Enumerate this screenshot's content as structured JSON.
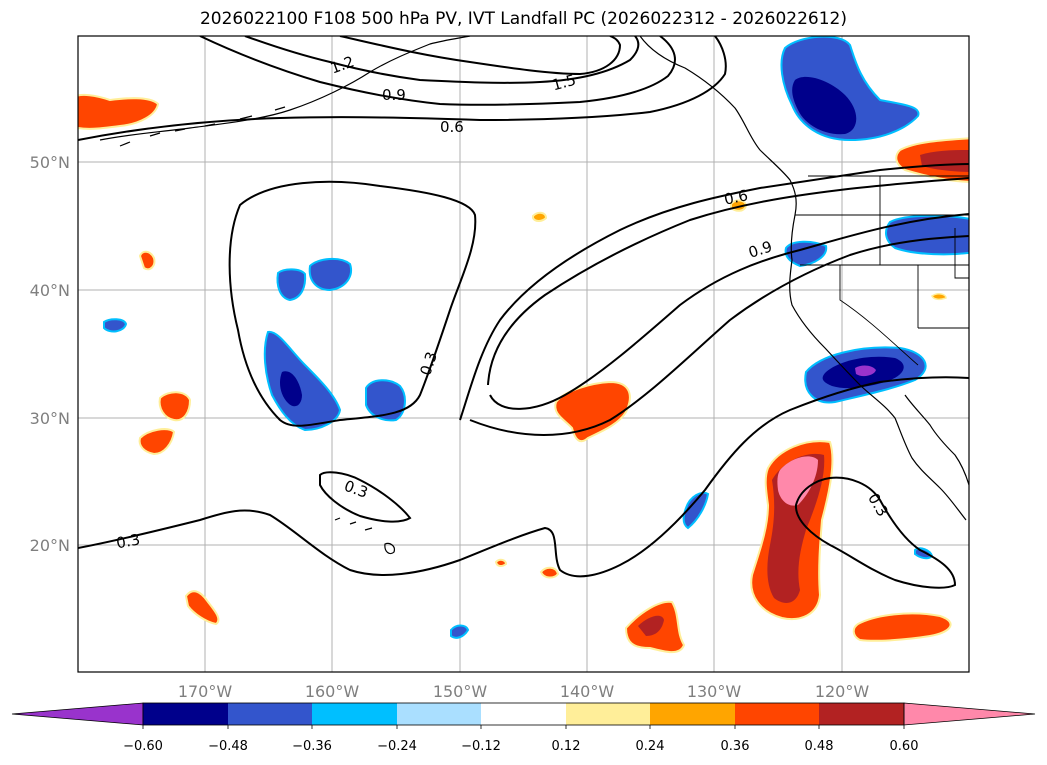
{
  "title": "2026022100 F108 500 hPa PV, IVT Landfall PC (2026022312 - 2026022612)",
  "map": {
    "longitude_ticks": [
      "170°W",
      "160°W",
      "150°W",
      "140°W",
      "130°W",
      "120°W"
    ],
    "latitude_ticks": [
      "50°N",
      "40°N",
      "30°N",
      "20°N"
    ],
    "gridlines": true
  },
  "contour_labels": [
    "1.2",
    "1.5",
    "0.9",
    "0.6",
    "0.6",
    "0.9",
    "0.3",
    "0.3",
    "0.3",
    "0.3"
  ],
  "colorbar": {
    "ticks": [
      "−0.60",
      "−0.48",
      "−0.36",
      "−0.24",
      "−0.12",
      "0.12",
      "0.24",
      "0.36",
      "0.48",
      "0.60"
    ],
    "colors": [
      "#9933cc",
      "#00008b",
      "#3355cc",
      "#00bfff",
      "#aadfff",
      "#ffffff",
      "#ffee99",
      "#ffa500",
      "#ff4500",
      "#b22222",
      "#ff88aa"
    ]
  }
}
